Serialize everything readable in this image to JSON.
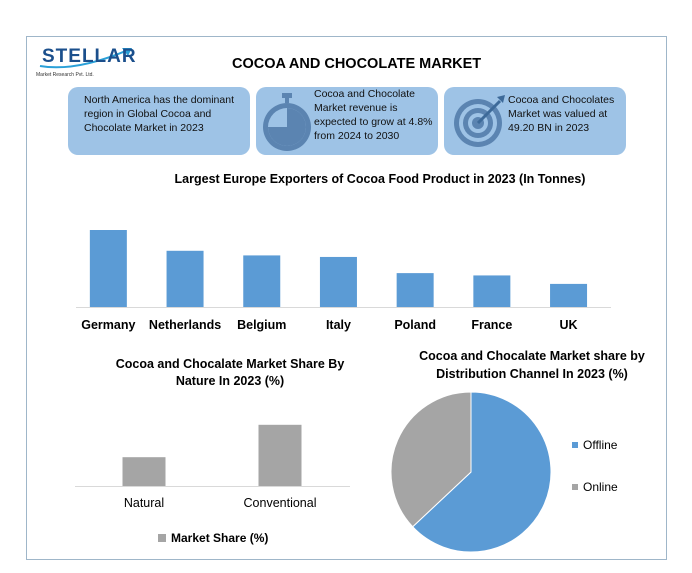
{
  "header": {
    "logo_text": "STELLAR",
    "logo_subtitle": "Market Research Pvt. Ltd.",
    "title": "COCOA AND CHOCOLATE MARKET"
  },
  "info_boxes": [
    {
      "text": "North America has the dominant region in Global Cocoa and Chocolate Market in 2023",
      "icon": "none"
    },
    {
      "text": "Cocoa and Chocolate Market revenue is expected to grow at 4.8% from 2024 to 2030",
      "icon": "stopwatch-icon"
    },
    {
      "text": "Cocoa and Chocolates Market was valued at 49.20 BN in 2023",
      "icon": "target-icon"
    }
  ],
  "colors": {
    "blue": "#5b9bd5",
    "gray": "#a5a5a5",
    "box": "#9ec3e6"
  },
  "chart_data": [
    {
      "type": "bar",
      "title": "Largest Europe Exporters of Cocoa Food Product in 2023 (In Tonnes)",
      "categories": [
        "Germany",
        "Netherlands",
        "Belgium",
        "Italy",
        "Poland",
        "France",
        "UK"
      ],
      "values": [
        100,
        73,
        67,
        65,
        44,
        41,
        30
      ],
      "ylim": [
        0,
        100
      ],
      "grid": false,
      "color": "#5b9bd5"
    },
    {
      "type": "bar",
      "title": "Cocoa and Chocalate Market Share By Nature In 2023 (%)",
      "categories": [
        "Natural",
        "Conventional"
      ],
      "series": [
        {
          "name": "Market Share (%)",
          "values": [
            32,
            68
          ]
        }
      ],
      "ylim": [
        0,
        100
      ],
      "grid": false,
      "legend": "bottom",
      "color": "#a5a5a5"
    },
    {
      "type": "pie",
      "title": "Cocoa and Chocalate Market share by Distribution Channel In 2023 (%)",
      "labels": [
        "Offline",
        "Online"
      ],
      "values": [
        63,
        37
      ],
      "colors": [
        "#5b9bd5",
        "#a5a5a5"
      ],
      "legend": "right"
    }
  ]
}
